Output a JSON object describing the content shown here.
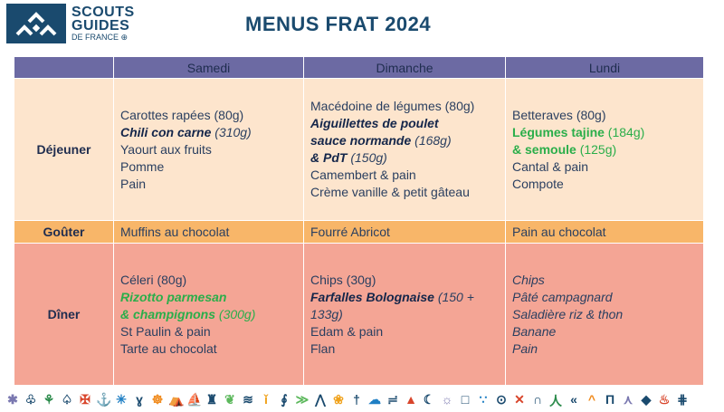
{
  "logo": {
    "line1": "SCOUTS",
    "line2": "GUIDES",
    "line3": "DE FRANCE ⊕"
  },
  "title": "MENUS FRAT 2024",
  "columns": [
    "",
    "Samedi",
    "Dimanche",
    "Lundi"
  ],
  "rows": [
    {
      "label": "Déjeuner",
      "cells": [
        [
          [
            {
              "t": "Carottes rapées (80g)"
            }
          ],
          [
            {
              "t": "Chili con carne",
              "s": "b i"
            },
            {
              "t": " (310g)",
              "s": "i"
            }
          ],
          [
            {
              "t": "Yaourt aux fruits"
            }
          ],
          [
            {
              "t": "Pomme"
            }
          ],
          [
            {
              "t": "Pain"
            }
          ]
        ],
        [
          [
            {
              "t": "Macédoine de légumes (80g)"
            }
          ],
          [
            {
              "t": "Aiguillettes de poulet",
              "s": "b i"
            }
          ],
          [
            {
              "t": "sauce normande",
              "s": "b i"
            },
            {
              "t": " (168g)",
              "s": "i"
            }
          ],
          [
            {
              "t": "& PdT",
              "s": "b i"
            },
            {
              "t": " (150g)",
              "s": "i"
            }
          ],
          [
            {
              "t": "Camembert & pain"
            }
          ],
          [
            {
              "t": "Crème vanille & petit gâteau"
            }
          ]
        ],
        [
          [
            {
              "t": "Betteraves (80g)"
            }
          ],
          [
            {
              "t": "Légumes tajine",
              "s": "b g"
            },
            {
              "t": " (184g)",
              "s": "g"
            }
          ],
          [
            {
              "t": "& semoule",
              "s": "b g"
            },
            {
              "t": " (125g)",
              "s": "g"
            }
          ],
          [
            {
              "t": "Cantal & pain"
            }
          ],
          [
            {
              "t": "Compote"
            }
          ]
        ]
      ]
    },
    {
      "label": "Goûter",
      "cells": [
        [
          [
            {
              "t": "Muffins au chocolat"
            }
          ]
        ],
        [
          [
            {
              "t": "Fourré Abricot"
            }
          ]
        ],
        [
          [
            {
              "t": "Pain au chocolat"
            }
          ]
        ]
      ]
    },
    {
      "label": "Dîner",
      "cells": [
        [
          [
            {
              "t": "Céleri (80g)"
            }
          ],
          [
            {
              "t": "Rizotto parmesan",
              "s": "b i g"
            }
          ],
          [
            {
              "t": "& champignons",
              "s": "b i g"
            },
            {
              "t": " (300g)",
              "s": "i g"
            }
          ],
          [
            {
              "t": "St Paulin & pain"
            }
          ],
          [
            {
              "t": "Tarte au chocolat"
            }
          ]
        ],
        [
          [
            {
              "t": "Chips (30g)"
            }
          ],
          [
            {
              "t": "Farfalles Bolognaise",
              "s": "b i"
            },
            {
              "t": " (150 +",
              "s": "i"
            }
          ],
          [
            {
              "t": "133g)",
              "s": "i"
            }
          ],
          [
            {
              "t": "Edam & pain"
            }
          ],
          [
            {
              "t": "Flan"
            }
          ]
        ],
        [
          [
            {
              "t": "Chips",
              "s": "i"
            }
          ],
          [
            {
              "t": "Pâté campagnard",
              "s": "i"
            }
          ],
          [
            {
              "t": "Saladière riz & thon",
              "s": "i"
            }
          ],
          [
            {
              "t": "Banane",
              "s": "i"
            }
          ],
          [
            {
              "t": "Pain",
              "s": "i"
            }
          ]
        ]
      ]
    }
  ],
  "decorative_icons": [
    {
      "name": "asterisk",
      "glyph": "✱",
      "color": "#7a78b0"
    },
    {
      "name": "tree",
      "glyph": "♧",
      "color": "#1a4a6e"
    },
    {
      "name": "fern",
      "glyph": "⚘",
      "color": "#2a8a4a"
    },
    {
      "name": "sprout",
      "glyph": "♤",
      "color": "#1a4a6e"
    },
    {
      "name": "cross",
      "glyph": "✠",
      "color": "#d8452b"
    },
    {
      "name": "anchor",
      "glyph": "⚓",
      "color": "#1a4a6e"
    },
    {
      "name": "star",
      "glyph": "✳",
      "color": "#1f7fc4"
    },
    {
      "name": "knot",
      "glyph": "ɣ",
      "color": "#1a4a6e"
    },
    {
      "name": "wheel",
      "glyph": "☸",
      "color": "#f08a1c"
    },
    {
      "name": "tent",
      "glyph": "⛺",
      "color": "#1a4a6e"
    },
    {
      "name": "boat",
      "glyph": "⛵",
      "color": "#1f7fc4"
    },
    {
      "name": "bottle",
      "glyph": "♜",
      "color": "#1a4a6e"
    },
    {
      "name": "leaf",
      "glyph": "❦",
      "color": "#5cb85c"
    },
    {
      "name": "mountains",
      "glyph": "≋",
      "color": "#1a4a6e"
    },
    {
      "name": "candle",
      "glyph": "ǐ",
      "color": "#f0a21c"
    },
    {
      "name": "hook",
      "glyph": "∮",
      "color": "#1a4a6e"
    },
    {
      "name": "arrows",
      "glyph": "≫",
      "color": "#5cb85c"
    },
    {
      "name": "peaks",
      "glyph": "⋀",
      "color": "#1a4a6e"
    },
    {
      "name": "paw",
      "glyph": "❀",
      "color": "#f0a21c"
    },
    {
      "name": "crosses",
      "glyph": "†",
      "color": "#1a4a6e"
    },
    {
      "name": "cloud",
      "glyph": "☁",
      "color": "#1f7fc4"
    },
    {
      "name": "wind",
      "glyph": "≓",
      "color": "#1a4a6e"
    },
    {
      "name": "triangle",
      "glyph": "▲",
      "color": "#d8452b"
    },
    {
      "name": "moon",
      "glyph": "☾",
      "color": "#1a4a6e"
    },
    {
      "name": "sun",
      "glyph": "☼",
      "color": "#7a78b0"
    },
    {
      "name": "square",
      "glyph": "□",
      "color": "#1a4a6e"
    },
    {
      "name": "drops",
      "glyph": "∵",
      "color": "#1f7fc4"
    },
    {
      "name": "eye",
      "glyph": "⊙",
      "color": "#1a4a6e"
    },
    {
      "name": "x-mark",
      "glyph": "✕",
      "color": "#d8452b"
    },
    {
      "name": "arch",
      "glyph": "∩",
      "color": "#1a4a6e"
    },
    {
      "name": "figure",
      "glyph": "人",
      "color": "#2a8a4a"
    },
    {
      "name": "chevrons",
      "glyph": "«",
      "color": "#1a4a6e"
    },
    {
      "name": "caret",
      "glyph": "^",
      "color": "#f08a1c"
    },
    {
      "name": "gate",
      "glyph": "Π",
      "color": "#1a4a6e"
    },
    {
      "name": "peak",
      "glyph": "⋏",
      "color": "#7a78b0"
    },
    {
      "name": "diamond",
      "glyph": "◆",
      "color": "#1a4a6e"
    },
    {
      "name": "fire",
      "glyph": "♨",
      "color": "#d8452b"
    },
    {
      "name": "hash",
      "glyph": "⋕",
      "color": "#1a4a6e"
    }
  ]
}
